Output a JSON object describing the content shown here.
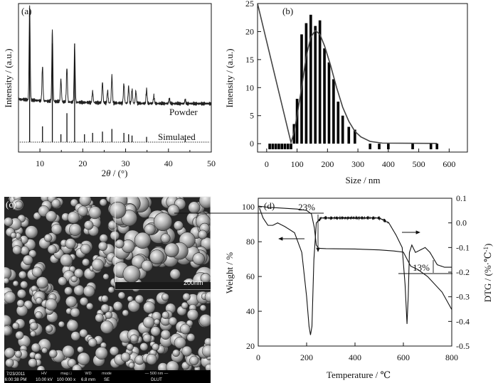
{
  "chart_data": [
    {
      "panel": "(a)",
      "type": "line",
      "xlabel_prefix": "2",
      "xlabel_theta": "θ",
      "xlabel_suffix": " / (°)",
      "ylabel": "Intensity / (a.u.)",
      "xlim": [
        5,
        50
      ],
      "xticks": [
        "10",
        "20",
        "30",
        "40",
        "50"
      ],
      "series": [
        {
          "name": "Powder",
          "peaks": [
            [
              7.6,
              1.0
            ],
            [
              10.6,
              0.37
            ],
            [
              12.9,
              0.76
            ],
            [
              14.9,
              0.24
            ],
            [
              16.3,
              0.37
            ],
            [
              18.1,
              0.59
            ],
            [
              22.3,
              0.12
            ],
            [
              24.6,
              0.22
            ],
            [
              25.8,
              0.13
            ],
            [
              26.8,
              0.29
            ],
            [
              29.6,
              0.21
            ],
            [
              30.7,
              0.18
            ],
            [
              31.5,
              0.15
            ],
            [
              32.4,
              0.13
            ],
            [
              34.9,
              0.15
            ],
            [
              36.6,
              0.08
            ],
            [
              40.2,
              0.05
            ],
            [
              43.9,
              0.04
            ]
          ]
        },
        {
          "name": "Simulated",
          "peaks": [
            [
              7.6,
              1.0
            ],
            [
              10.6,
              0.12
            ],
            [
              12.9,
              0.75
            ],
            [
              14.9,
              0.06
            ],
            [
              16.3,
              0.22
            ],
            [
              18.1,
              0.75
            ],
            [
              20.4,
              0.06
            ],
            [
              22.3,
              0.07
            ],
            [
              24.6,
              0.08
            ],
            [
              26.8,
              0.1
            ],
            [
              29.6,
              0.07
            ],
            [
              30.7,
              0.06
            ],
            [
              31.5,
              0.05
            ],
            [
              34.9,
              0.04
            ],
            [
              43.9,
              0.03
            ]
          ]
        }
      ]
    },
    {
      "panel": "(b)",
      "type": "bar",
      "xlabel": "Size / nm",
      "ylabel": "Intensity / (a.u.)",
      "xlim": [
        -30,
        660
      ],
      "ylim": [
        -1.5,
        25
      ],
      "xticks": [
        "0",
        "100",
        "200",
        "300",
        "400",
        "500",
        "600"
      ],
      "yticks": [
        "0",
        "5",
        "10",
        "15",
        "20",
        "25"
      ],
      "bars": [
        [
          10,
          -1
        ],
        [
          20,
          -1
        ],
        [
          30,
          -1
        ],
        [
          40,
          -1
        ],
        [
          50,
          -1
        ],
        [
          60,
          -1
        ],
        [
          70,
          -1
        ],
        [
          80,
          -1
        ],
        [
          90,
          3.5
        ],
        [
          100,
          8
        ],
        [
          115,
          19.5
        ],
        [
          130,
          21.5
        ],
        [
          145,
          23
        ],
        [
          160,
          21
        ],
        [
          175,
          22
        ],
        [
          190,
          17
        ],
        [
          205,
          14.5
        ],
        [
          220,
          11.5
        ],
        [
          235,
          7.5
        ],
        [
          250,
          5
        ],
        [
          270,
          3
        ],
        [
          290,
          2.5
        ],
        [
          340,
          -1
        ],
        [
          370,
          -1
        ],
        [
          400,
          -1
        ],
        [
          480,
          -1
        ],
        [
          540,
          -1
        ],
        [
          560,
          -1
        ]
      ],
      "fit": [
        [
          -30,
          25
        ],
        [
          80,
          0.2
        ],
        [
          90,
          2
        ],
        [
          100,
          5
        ],
        [
          115,
          10
        ],
        [
          130,
          15.5
        ],
        [
          145,
          19
        ],
        [
          160,
          20.2
        ],
        [
          175,
          19.5
        ],
        [
          190,
          17.5
        ],
        [
          210,
          14
        ],
        [
          230,
          10
        ],
        [
          250,
          6.5
        ],
        [
          270,
          4
        ],
        [
          290,
          2.2
        ],
        [
          310,
          1.2
        ],
        [
          340,
          0.4
        ],
        [
          380,
          0.1
        ],
        [
          560,
          0.05
        ]
      ]
    },
    {
      "panel": "(c)",
      "type": "image",
      "scale_label": "200nm",
      "info_headers": [
        "HV",
        "mag □",
        "WD",
        "mode",
        "— 500 nm —"
      ],
      "info_values": [
        "7/23/2011",
        "6:00:38 PM",
        "10.00 kV",
        "100 000 x",
        "6.8 mm",
        "SE",
        "DLUT"
      ]
    },
    {
      "panel": "(d)",
      "type": "line",
      "xlabel": "Temperature / ℃",
      "ylabel_left": "Weight / %",
      "ylabel_right": "DTG / (%·℃",
      "ylabel_right_sup": "-1",
      "ylabel_right_end": ")",
      "xlim": [
        0,
        800
      ],
      "ylim_left": [
        20,
        105
      ],
      "ylim_right": [
        -0.5,
        0.1
      ],
      "xticks": [
        "0",
        "200",
        "400",
        "600",
        "800"
      ],
      "yticks_left": [
        "20",
        "40",
        "60",
        "80",
        "100"
      ],
      "yticks_right": [
        "0.1",
        "0.0",
        "-0.1",
        "-0.2",
        "-0.3",
        "-0.4",
        "-0.5"
      ],
      "annotations": [
        "23%",
        "13%"
      ],
      "series": [
        {
          "name": "Weight",
          "points": [
            [
              0,
              100.5
            ],
            [
              40,
              99.8
            ],
            [
              100,
              99.3
            ],
            [
              160,
              98.8
            ],
            [
              200,
              98
            ],
            [
              220,
              96
            ],
            [
              232,
              88
            ],
            [
              240,
              78
            ],
            [
              250,
              76.2
            ],
            [
              280,
              76
            ],
            [
              400,
              75.8
            ],
            [
              500,
              75.3
            ],
            [
              560,
              74.7
            ],
            [
              600,
              74
            ],
            [
              615,
              70
            ],
            [
              630,
              66
            ],
            [
              660,
              64
            ],
            [
              700,
              60
            ],
            [
              760,
              51
            ],
            [
              800,
              41
            ]
          ]
        },
        {
          "name": "DTG",
          "points": [
            [
              5,
              0.06
            ],
            [
              20,
              0.02
            ],
            [
              40,
              -0.01
            ],
            [
              60,
              -0.01
            ],
            [
              80,
              0.0
            ],
            [
              110,
              -0.015
            ],
            [
              150,
              -0.04
            ],
            [
              180,
              -0.12
            ],
            [
              200,
              -0.3
            ],
            [
              210,
              -0.42
            ],
            [
              216,
              -0.455
            ],
            [
              222,
              -0.42
            ],
            [
              230,
              -0.15
            ],
            [
              240,
              0.0
            ],
            [
              260,
              0.02
            ],
            [
              300,
              0.02
            ],
            [
              400,
              0.02
            ],
            [
              500,
              0.02
            ],
            [
              540,
              0.0
            ],
            [
              570,
              -0.05
            ],
            [
              595,
              -0.1
            ],
            [
              607,
              -0.25
            ],
            [
              615,
              -0.41
            ],
            [
              620,
              -0.3
            ],
            [
              625,
              -0.12
            ],
            [
              635,
              -0.09
            ],
            [
              650,
              -0.12
            ],
            [
              670,
              -0.11
            ],
            [
              690,
              -0.1
            ],
            [
              710,
              -0.12
            ],
            [
              740,
              -0.17
            ],
            [
              770,
              -0.18
            ],
            [
              800,
              -0.18
            ]
          ]
        }
      ]
    }
  ]
}
